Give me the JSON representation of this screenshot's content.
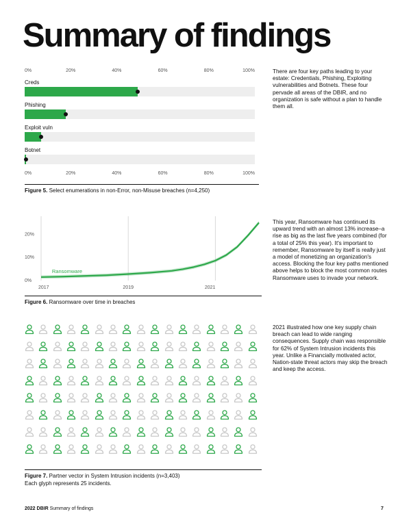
{
  "page": {
    "title": "Summary of findings",
    "footer_report": "2022 DBIR",
    "footer_section": "Summary of findings",
    "page_number": "7"
  },
  "figure5": {
    "axis_ticks": [
      "0%",
      "20%",
      "40%",
      "60%",
      "80%",
      "100%"
    ],
    "caption_label": "Figure 5.",
    "caption_text": " Select enumerations in non-Error, non-Misuse breaches (n=4,250)"
  },
  "figure6": {
    "caption_label": "Figure 6.",
    "caption_text": " Ransomware over time in breaches"
  },
  "figure7": {
    "caption_label": "Figure 7.",
    "caption_text": " Partner vector in System Intrusion incidents (n=3,403)",
    "caption_line2": "Each glyph represents 25 incidents.",
    "glyph_counts": {
      "total": 136,
      "highlighted": 62
    }
  },
  "text": {
    "p1": "There are four key paths leading to your estate: Credentials, Phishing, Exploiting vulnerabilities and Botnets. These four pervade all areas of the DBIR, and no organization is safe without a plan to handle them all.",
    "p2": "This year, Ransomware has continued its upward trend with an almost 13% increase–a rise as big as the last five years combined (for a total of 25% this year). It's important to remember, Ransomware by itself is really just a model of monetizing an organization's access. Blocking the four key paths mentioned above helps to block the most common routes Ransomware uses to invade your network.",
    "p3": "2021 illustrated how one key supply chain breach can lead to wide ranging consequences. Supply chain was responsible for 62% of System Intrusion incidents this year. Unlike a Financially motivated actor, Nation-state threat actors may skip the breach and keep the access."
  },
  "colors": {
    "accent": "#2da84a",
    "track": "#eeeeee",
    "ink": "#111111",
    "muted": "#c8c8c8"
  },
  "chart_data": [
    {
      "type": "bar",
      "orientation": "horizontal",
      "categories": [
        "Creds",
        "Phishing",
        "Exploit vuln",
        "Botnet"
      ],
      "values": [
        49,
        18,
        7,
        0.5
      ],
      "xlim": [
        0,
        100
      ],
      "ticks": [
        "0%",
        "20%",
        "40%",
        "60%",
        "80%",
        "100%"
      ]
    },
    {
      "type": "line",
      "series": [
        {
          "name": "Ransomware",
          "x": [
            2017,
            2017.5,
            2018,
            2018.5,
            2019,
            2019.5,
            2020,
            2020.25,
            2020.5,
            2020.75,
            2021,
            2021.25,
            2021.5,
            2021.75,
            2022
          ],
          "y": [
            1.5,
            1.7,
            2.0,
            2.3,
            2.8,
            3.4,
            4.2,
            4.9,
            5.8,
            7.0,
            8.6,
            11.0,
            14.5,
            19.5,
            25.0
          ]
        }
      ],
      "x_tick_labels": [
        "2017",
        "2019",
        "2021"
      ],
      "y_tick_labels": [
        "0%",
        "10%",
        "20%"
      ],
      "ylim": [
        0,
        26
      ],
      "grid": "vertical"
    }
  ]
}
